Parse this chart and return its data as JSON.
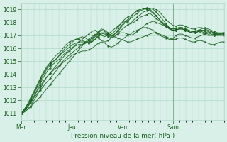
{
  "title": "",
  "xlabel": "Pression niveau de la mer( hPa )",
  "ylabel": "",
  "bg_color": "#d8f0e8",
  "grid_color": "#b0d8c8",
  "line_color": "#1a6020",
  "ylim": [
    1010.5,
    1019.5
  ],
  "yticks": [
    1011,
    1012,
    1013,
    1014,
    1015,
    1016,
    1017,
    1018,
    1019
  ],
  "day_labels": [
    "Mer",
    "Jeu",
    "Ven",
    "Sam"
  ],
  "day_positions": [
    0,
    48,
    96,
    144
  ],
  "total_hours": 192,
  "lines": [
    [
      1011.0,
      1011.1,
      1011.3,
      1011.5,
      1011.8,
      1012.0,
      1012.3,
      1012.6,
      1012.9,
      1013.2,
      1013.5,
      1013.8,
      1014.1,
      1014.4,
      1014.7,
      1015.0,
      1015.3,
      1015.6,
      1015.9,
      1016.2,
      1016.4,
      1016.6,
      1016.8,
      1017.0,
      1017.1,
      1017.2,
      1017.2,
      1017.1,
      1017.0,
      1016.9,
      1016.8,
      1016.7,
      1016.6,
      1016.5,
      1016.5,
      1016.6,
      1016.7,
      1016.8,
      1016.9,
      1017.0,
      1017.1,
      1017.2,
      1017.2,
      1017.1,
      1017.0,
      1016.9,
      1016.8,
      1016.7,
      1017.0,
      1017.1,
      1017.1,
      1017.0,
      1016.9,
      1016.8,
      1016.8,
      1016.9,
      1017.0,
      1017.1,
      1017.2,
      1017.3,
      1017.2,
      1017.1,
      1017.0,
      1017.0
    ],
    [
      1011.0,
      1011.2,
      1011.5,
      1011.8,
      1012.2,
      1012.5,
      1012.8,
      1013.1,
      1013.4,
      1013.7,
      1014.0,
      1014.3,
      1014.7,
      1015.0,
      1015.3,
      1015.5,
      1015.7,
      1015.9,
      1016.1,
      1016.3,
      1016.5,
      1016.7,
      1016.9,
      1017.1,
      1016.8,
      1016.6,
      1016.5,
      1016.6,
      1016.8,
      1017.0,
      1017.1,
      1017.2,
      1017.2,
      1017.1,
      1017.0,
      1017.1,
      1017.3,
      1017.5,
      1017.7,
      1017.9,
      1018.0,
      1018.1,
      1018.0,
      1017.9,
      1017.8,
      1017.7,
      1017.6,
      1017.5,
      1017.5,
      1017.6,
      1017.6,
      1017.5,
      1017.4,
      1017.3,
      1017.3,
      1017.4,
      1017.5,
      1017.6,
      1017.5,
      1017.4,
      1017.3,
      1017.2,
      1017.1,
      1017.1
    ],
    [
      1011.0,
      1011.2,
      1011.5,
      1011.9,
      1012.3,
      1012.7,
      1013.1,
      1013.5,
      1013.8,
      1014.1,
      1014.4,
      1014.7,
      1015.0,
      1015.3,
      1015.6,
      1015.8,
      1016.0,
      1016.3,
      1016.5,
      1016.7,
      1016.9,
      1017.1,
      1017.3,
      1017.4,
      1017.2,
      1017.0,
      1016.9,
      1017.1,
      1017.3,
      1017.5,
      1017.7,
      1017.9,
      1018.1,
      1018.0,
      1017.9,
      1018.0,
      1018.2,
      1018.4,
      1018.5,
      1018.6,
      1018.7,
      1018.5,
      1018.3,
      1018.1,
      1017.9,
      1017.7,
      1017.5,
      1017.4,
      1017.4,
      1017.5,
      1017.5,
      1017.4,
      1017.3,
      1017.2,
      1017.2,
      1017.3,
      1017.4,
      1017.4,
      1017.3,
      1017.2,
      1017.1,
      1017.0,
      1017.0,
      1017.1
    ],
    [
      1011.0,
      1011.3,
      1011.6,
      1012.0,
      1012.5,
      1013.0,
      1013.5,
      1014.0,
      1014.4,
      1014.7,
      1015.0,
      1015.2,
      1015.5,
      1015.8,
      1016.1,
      1016.3,
      1016.5,
      1016.7,
      1016.8,
      1016.9,
      1016.8,
      1016.6,
      1016.5,
      1016.7,
      1016.9,
      1017.1,
      1017.2,
      1017.0,
      1016.8,
      1016.9,
      1017.1,
      1017.4,
      1017.6,
      1017.8,
      1017.9,
      1018.2,
      1018.4,
      1018.6,
      1018.8,
      1018.9,
      1019.0,
      1019.1,
      1019.0,
      1018.8,
      1018.5,
      1018.2,
      1018.0,
      1017.8,
      1017.7,
      1017.8,
      1017.8,
      1017.7,
      1017.6,
      1017.5,
      1017.5,
      1017.6,
      1017.6,
      1017.5,
      1017.4,
      1017.3,
      1017.2,
      1017.1,
      1017.1,
      1017.2
    ],
    [
      1011.0,
      1011.3,
      1011.7,
      1012.1,
      1012.6,
      1013.1,
      1013.7,
      1014.2,
      1014.6,
      1014.9,
      1015.2,
      1015.5,
      1015.7,
      1016.0,
      1016.3,
      1016.5,
      1016.6,
      1016.7,
      1016.7,
      1016.6,
      1016.5,
      1016.4,
      1016.6,
      1016.9,
      1017.2,
      1017.4,
      1017.3,
      1017.1,
      1016.9,
      1017.1,
      1017.4,
      1017.7,
      1018.0,
      1018.2,
      1018.4,
      1018.7,
      1018.9,
      1019.0,
      1019.1,
      1019.0,
      1018.9,
      1018.7,
      1018.5,
      1018.2,
      1018.0,
      1017.8,
      1017.6,
      1017.5,
      1017.5,
      1017.6,
      1017.6,
      1017.5,
      1017.4,
      1017.3,
      1017.3,
      1017.4,
      1017.4,
      1017.3,
      1017.2,
      1017.1,
      1017.0,
      1017.0,
      1017.1,
      1017.2
    ],
    [
      1011.0,
      1011.2,
      1011.5,
      1011.9,
      1012.3,
      1012.8,
      1013.3,
      1013.8,
      1014.2,
      1014.5,
      1014.8,
      1015.0,
      1015.2,
      1015.5,
      1015.7,
      1015.9,
      1016.1,
      1016.2,
      1016.3,
      1016.3,
      1016.4,
      1016.5,
      1016.7,
      1017.0,
      1017.3,
      1017.5,
      1017.4,
      1017.2,
      1017.0,
      1017.1,
      1017.3,
      1017.6,
      1017.9,
      1018.1,
      1018.3,
      1018.5,
      1018.7,
      1018.9,
      1019.0,
      1019.1,
      1019.1,
      1019.0,
      1018.8,
      1018.5,
      1018.2,
      1017.9,
      1017.6,
      1017.4,
      1017.4,
      1017.5,
      1017.5,
      1017.4,
      1017.3,
      1017.2,
      1017.2,
      1017.3,
      1017.3,
      1017.2,
      1017.1,
      1017.0,
      1017.0,
      1017.1,
      1017.2,
      1017.2
    ],
    [
      1011.0,
      1011.3,
      1011.7,
      1012.2,
      1012.7,
      1013.2,
      1013.7,
      1014.1,
      1014.5,
      1014.8,
      1015.0,
      1015.2,
      1015.5,
      1015.7,
      1015.9,
      1016.1,
      1016.3,
      1016.4,
      1016.5,
      1016.5,
      1016.5,
      1016.4,
      1016.5,
      1016.7,
      1017.0,
      1017.2,
      1017.1,
      1016.9,
      1017.1,
      1017.3,
      1017.6,
      1017.9,
      1018.2,
      1018.4,
      1018.5,
      1018.7,
      1018.9,
      1019.0,
      1019.1,
      1019.1,
      1019.0,
      1018.8,
      1018.5,
      1018.2,
      1017.9,
      1017.7,
      1017.5,
      1017.4,
      1017.4,
      1017.5,
      1017.5,
      1017.4,
      1017.3,
      1017.2,
      1017.2,
      1017.3,
      1017.2,
      1017.1,
      1017.0,
      1017.0,
      1017.1,
      1017.2,
      1017.2,
      1017.1
    ],
    [
      1011.0,
      1011.1,
      1011.3,
      1011.6,
      1012.0,
      1012.4,
      1012.9,
      1013.4,
      1013.8,
      1014.1,
      1014.3,
      1014.5,
      1014.7,
      1014.9,
      1015.1,
      1015.3,
      1015.5,
      1015.6,
      1015.7,
      1015.8,
      1015.8,
      1015.9,
      1016.0,
      1016.2,
      1016.4,
      1016.5,
      1016.4,
      1016.2,
      1016.1,
      1016.2,
      1016.4,
      1016.6,
      1016.8,
      1017.0,
      1017.1,
      1017.3,
      1017.4,
      1017.5,
      1017.6,
      1017.6,
      1017.5,
      1017.4,
      1017.2,
      1017.0,
      1016.9,
      1016.8,
      1016.7,
      1016.7,
      1016.7,
      1016.8,
      1016.8,
      1016.7,
      1016.6,
      1016.5,
      1016.5,
      1016.6,
      1016.6,
      1016.5,
      1016.4,
      1016.3,
      1016.3,
      1016.4,
      1016.5,
      1016.5
    ]
  ],
  "vline_positions": [
    0,
    48,
    96,
    144
  ],
  "dot_marker": ".",
  "dot_size": 2
}
